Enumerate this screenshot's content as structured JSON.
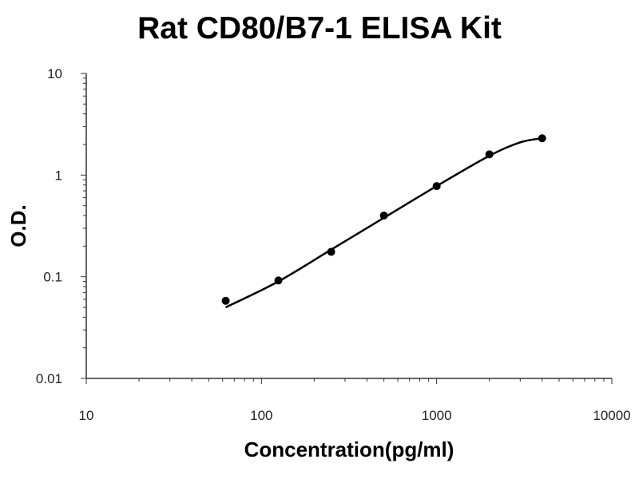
{
  "chart_data": {
    "type": "scatter",
    "title": "Rat CD80/B7-1 ELISA Kit",
    "xlabel": "Concentration(pg/ml)",
    "ylabel": "O.D.",
    "x_scale": "log",
    "y_scale": "log",
    "xlim": [
      10,
      10000
    ],
    "ylim": [
      0.01,
      10
    ],
    "x_ticks": [
      "10",
      "100",
      "1000",
      "10000"
    ],
    "y_ticks": [
      "10",
      "1",
      "0.1",
      "0.01"
    ],
    "grid": false,
    "legend": "none",
    "series": [
      {
        "points": [
          {
            "x": 62.5,
            "y": 0.058
          },
          {
            "x": 125,
            "y": 0.092
          },
          {
            "x": 250,
            "y": 0.176
          },
          {
            "x": 500,
            "y": 0.4
          },
          {
            "x": 1000,
            "y": 0.78
          },
          {
            "x": 2000,
            "y": 1.6
          },
          {
            "x": 4000,
            "y": 2.3
          }
        ],
        "fit_curve": [
          {
            "x": 62.5,
            "y": 0.05
          },
          {
            "x": 125,
            "y": 0.09
          },
          {
            "x": 250,
            "y": 0.185
          },
          {
            "x": 500,
            "y": 0.38
          },
          {
            "x": 1000,
            "y": 0.78
          },
          {
            "x": 2000,
            "y": 1.55
          },
          {
            "x": 3000,
            "y": 2.1
          },
          {
            "x": 4000,
            "y": 2.3
          }
        ]
      }
    ],
    "colors": {
      "points": "#000000",
      "line": "#000000",
      "axis": "#333333"
    }
  }
}
